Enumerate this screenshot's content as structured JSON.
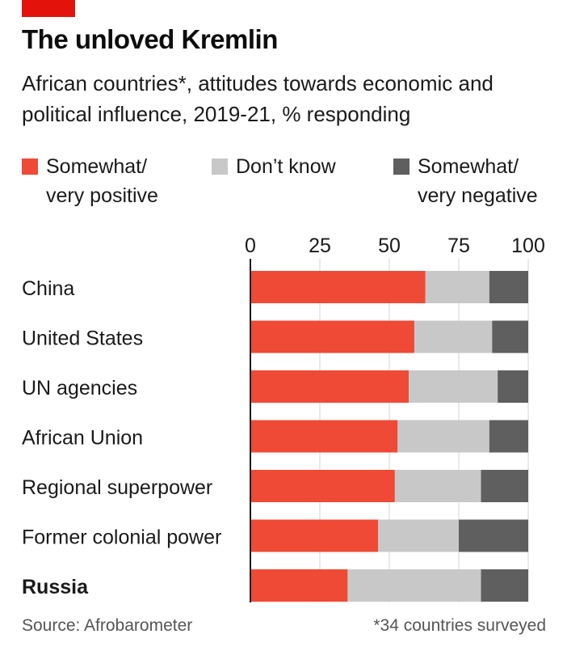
{
  "title": "The unloved Kremlin",
  "subtitle": "African countries*, attitudes towards economic and political influence, 2019-21, % responding",
  "legend": [
    {
      "label": "Somewhat/\nvery positive",
      "color": "#ef4a35"
    },
    {
      "label": "Don’t know",
      "color": "#c8c8c8"
    },
    {
      "label": "Somewhat/\nvery negative",
      "color": "#5f5f5f"
    }
  ],
  "source": "Source: Afrobarometer",
  "footnote": "*34 countries surveyed",
  "chart_data": {
    "type": "bar",
    "orientation": "horizontal",
    "stacked": true,
    "title": "The unloved Kremlin",
    "subtitle": "African countries*, attitudes towards economic and political influence, 2019-21, % responding",
    "categories": [
      "China",
      "United States",
      "UN agencies",
      "African Union",
      "Regional superpower",
      "Former colonial power",
      "Russia"
    ],
    "highlight_category": "Russia",
    "xlim": [
      0,
      100
    ],
    "xticks": [
      0,
      25,
      50,
      75,
      100
    ],
    "xtick_labels": [
      "0",
      "25",
      "50",
      "75",
      "100"
    ],
    "axis_position": "top",
    "grid": true,
    "legend_position": "top",
    "series": [
      {
        "name": "Somewhat/ very positive",
        "color": "#ef4a35",
        "values": [
          63,
          59,
          57,
          53,
          52,
          46,
          35
        ]
      },
      {
        "name": "Don’t know",
        "color": "#c8c8c8",
        "values": [
          23,
          28,
          32,
          33,
          31,
          29,
          48
        ]
      },
      {
        "name": "Somewhat/ very negative",
        "color": "#5f5f5f",
        "values": [
          14,
          13,
          11,
          14,
          17,
          25,
          17
        ]
      }
    ]
  }
}
